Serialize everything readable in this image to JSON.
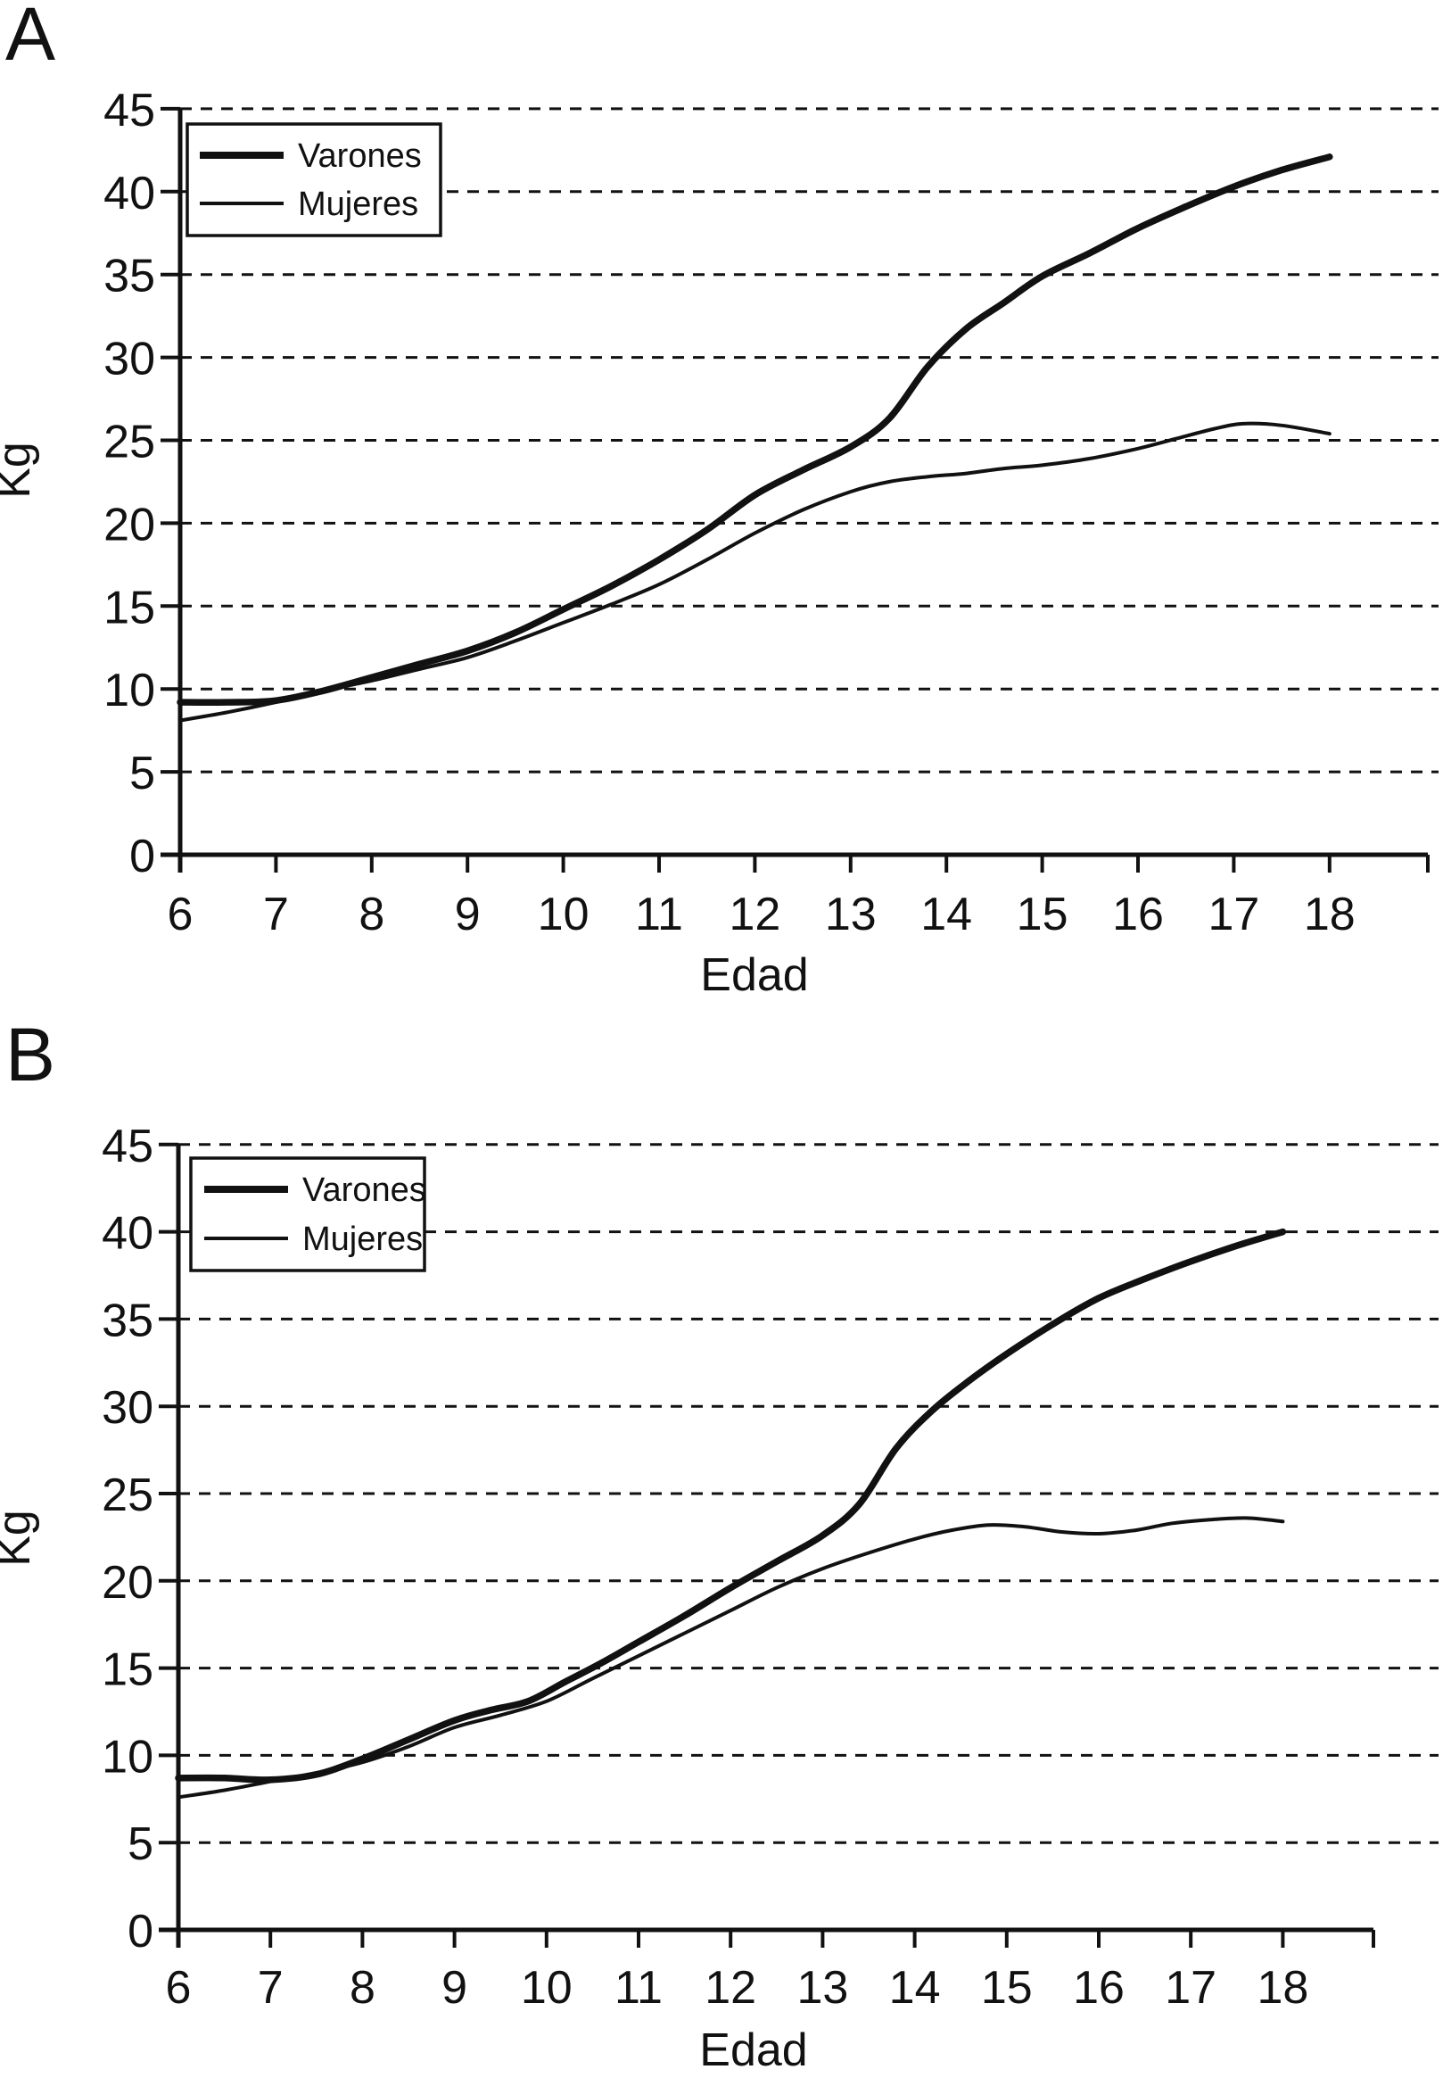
{
  "figure": {
    "background_color": "#ffffff",
    "ink_color": "#111111",
    "panel_letters": [
      "A",
      "B"
    ]
  },
  "chart_data": [
    {
      "panel": "A",
      "type": "line",
      "title": "",
      "xlabel": "Edad",
      "ylabel": "Kg",
      "xlim": [
        6,
        19
      ],
      "ylim": [
        0,
        45
      ],
      "xticks": [
        6,
        7,
        8,
        9,
        10,
        11,
        12,
        13,
        14,
        15,
        16,
        17,
        18
      ],
      "yticks": [
        0,
        5,
        10,
        15,
        20,
        25,
        30,
        35,
        40,
        45
      ],
      "grid": "horizontal-dashed",
      "legend_position": "top-left",
      "legend": [
        {
          "name": "Varones",
          "style": "thick"
        },
        {
          "name": "Mujeres",
          "style": "thin"
        }
      ],
      "series": [
        {
          "name": "Varones",
          "style": "thick",
          "points": [
            [
              6,
              9.2
            ],
            [
              6.5,
              9.2
            ],
            [
              7,
              9.3
            ],
            [
              7.5,
              9.9
            ],
            [
              8,
              10.7
            ],
            [
              8.5,
              11.5
            ],
            [
              9,
              12.3
            ],
            [
              9.5,
              13.4
            ],
            [
              10,
              14.8
            ],
            [
              10.5,
              16.2
            ],
            [
              11,
              17.8
            ],
            [
              11.5,
              19.6
            ],
            [
              12,
              21.7
            ],
            [
              12.5,
              23.2
            ],
            [
              13,
              24.6
            ],
            [
              13.4,
              26.3
            ],
            [
              13.8,
              29.4
            ],
            [
              14.2,
              31.7
            ],
            [
              14.6,
              33.3
            ],
            [
              15,
              34.9
            ],
            [
              15.5,
              36.3
            ],
            [
              16,
              37.8
            ],
            [
              16.5,
              39.1
            ],
            [
              17,
              40.3
            ],
            [
              17.5,
              41.3
            ],
            [
              18,
              42.1
            ]
          ]
        },
        {
          "name": "Mujeres",
          "style": "thin",
          "points": [
            [
              6,
              8.1
            ],
            [
              6.5,
              8.6
            ],
            [
              7,
              9.2
            ],
            [
              7.5,
              9.9
            ],
            [
              8,
              10.5
            ],
            [
              8.5,
              11.2
            ],
            [
              9,
              11.9
            ],
            [
              9.5,
              12.9
            ],
            [
              10,
              14.0
            ],
            [
              10.5,
              15.1
            ],
            [
              11,
              16.3
            ],
            [
              11.5,
              17.8
            ],
            [
              12,
              19.4
            ],
            [
              12.5,
              20.8
            ],
            [
              13,
              21.9
            ],
            [
              13.4,
              22.5
            ],
            [
              13.8,
              22.8
            ],
            [
              14.2,
              23.0
            ],
            [
              14.6,
              23.3
            ],
            [
              15,
              23.5
            ],
            [
              15.5,
              23.9
            ],
            [
              16,
              24.5
            ],
            [
              16.4,
              25.1
            ],
            [
              16.8,
              25.7
            ],
            [
              17.1,
              26.0
            ],
            [
              17.5,
              25.9
            ],
            [
              18,
              25.4
            ]
          ]
        }
      ]
    },
    {
      "panel": "B",
      "type": "line",
      "title": "",
      "xlabel": "Edad",
      "ylabel": "Kg",
      "xlim": [
        6,
        19
      ],
      "ylim": [
        0,
        45
      ],
      "xticks": [
        6,
        7,
        8,
        9,
        10,
        11,
        12,
        13,
        14,
        15,
        16,
        17,
        18
      ],
      "yticks": [
        0,
        5,
        10,
        15,
        20,
        25,
        30,
        35,
        40,
        45
      ],
      "grid": "horizontal-dashed",
      "legend_position": "top-left",
      "legend": [
        {
          "name": "Varones",
          "style": "thick"
        },
        {
          "name": "Mujeres",
          "style": "thin"
        }
      ],
      "series": [
        {
          "name": "Varones",
          "style": "thick",
          "points": [
            [
              6,
              8.7
            ],
            [
              6.5,
              8.7
            ],
            [
              7,
              8.6
            ],
            [
              7.5,
              8.9
            ],
            [
              8,
              9.8
            ],
            [
              8.5,
              10.9
            ],
            [
              9,
              12.0
            ],
            [
              9.4,
              12.6
            ],
            [
              9.8,
              13.1
            ],
            [
              10.2,
              14.2
            ],
            [
              10.6,
              15.3
            ],
            [
              11,
              16.5
            ],
            [
              11.5,
              18.0
            ],
            [
              12,
              19.6
            ],
            [
              12.5,
              21.1
            ],
            [
              13,
              22.6
            ],
            [
              13.4,
              24.4
            ],
            [
              13.8,
              27.6
            ],
            [
              14.2,
              29.8
            ],
            [
              14.6,
              31.5
            ],
            [
              15,
              33.0
            ],
            [
              15.5,
              34.7
            ],
            [
              16,
              36.2
            ],
            [
              16.5,
              37.3
            ],
            [
              17,
              38.3
            ],
            [
              17.5,
              39.2
            ],
            [
              18,
              40.0
            ]
          ]
        },
        {
          "name": "Mujeres",
          "style": "thin",
          "points": [
            [
              6,
              7.6
            ],
            [
              6.5,
              8.0
            ],
            [
              7,
              8.5
            ],
            [
              7.5,
              9.0
            ],
            [
              8,
              9.6
            ],
            [
              8.5,
              10.5
            ],
            [
              9,
              11.6
            ],
            [
              9.5,
              12.3
            ],
            [
              10,
              13.1
            ],
            [
              10.5,
              14.4
            ],
            [
              11,
              15.7
            ],
            [
              11.5,
              17.0
            ],
            [
              12,
              18.3
            ],
            [
              12.5,
              19.6
            ],
            [
              13,
              20.7
            ],
            [
              13.5,
              21.6
            ],
            [
              14,
              22.4
            ],
            [
              14.4,
              22.9
            ],
            [
              14.8,
              23.2
            ],
            [
              15.2,
              23.1
            ],
            [
              15.6,
              22.8
            ],
            [
              16,
              22.7
            ],
            [
              16.4,
              22.9
            ],
            [
              16.8,
              23.3
            ],
            [
              17.2,
              23.5
            ],
            [
              17.6,
              23.6
            ],
            [
              18,
              23.4
            ]
          ]
        }
      ]
    }
  ]
}
